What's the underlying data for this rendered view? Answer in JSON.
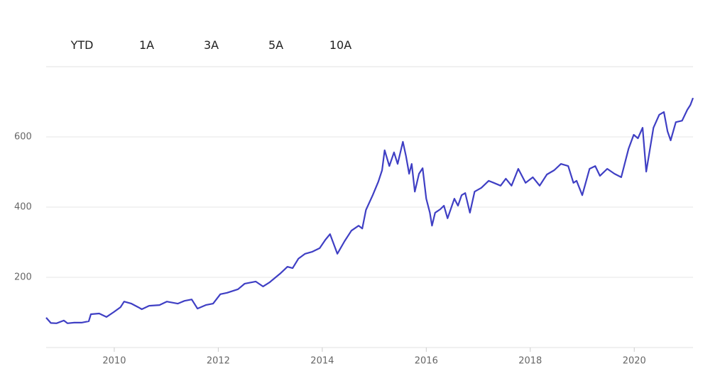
{
  "range_buttons": [
    "YTD",
    "1A",
    "3A",
    "5A",
    "10A"
  ],
  "chart_data": {
    "type": "line",
    "color": "#3f3fc4",
    "grid": true,
    "xlim": [
      2008.69,
      2021.13
    ],
    "xticks": [
      2010,
      2012,
      2014,
      2016,
      2018,
      2020
    ],
    "ylim": [
      0,
      800
    ],
    "yticks": [
      200,
      400,
      600
    ],
    "x": [
      2008.69,
      2008.78,
      2008.89,
      2009.03,
      2009.1,
      2009.23,
      2009.37,
      2009.51,
      2009.55,
      2009.71,
      2009.85,
      2009.99,
      2010.12,
      2010.19,
      2010.33,
      2010.46,
      2010.53,
      2010.67,
      2010.87,
      2011.01,
      2011.22,
      2011.35,
      2011.49,
      2011.6,
      2011.76,
      2011.9,
      2012.04,
      2012.17,
      2012.38,
      2012.51,
      2012.72,
      2012.86,
      2012.99,
      2013.2,
      2013.33,
      2013.43,
      2013.54,
      2013.67,
      2013.81,
      2013.95,
      2014.06,
      2014.15,
      2014.29,
      2014.43,
      2014.56,
      2014.7,
      2014.77,
      2014.84,
      2014.97,
      2015.08,
      2015.15,
      2015.2,
      2015.29,
      2015.38,
      2015.45,
      2015.55,
      2015.61,
      2015.67,
      2015.72,
      2015.78,
      2015.86,
      2015.93,
      2016.0,
      2016.07,
      2016.11,
      2016.17,
      2016.27,
      2016.34,
      2016.41,
      2016.54,
      2016.61,
      2016.68,
      2016.75,
      2016.84,
      2016.93,
      2017.06,
      2017.2,
      2017.3,
      2017.43,
      2017.53,
      2017.64,
      2017.77,
      2017.91,
      2018.05,
      2018.18,
      2018.32,
      2018.46,
      2018.59,
      2018.73,
      2018.83,
      2018.89,
      2019.0,
      2019.14,
      2019.25,
      2019.34,
      2019.48,
      2019.62,
      2019.75,
      2019.89,
      2019.99,
      2020.07,
      2020.16,
      2020.23,
      2020.37,
      2020.48,
      2020.57,
      2020.64,
      2020.7,
      2020.8,
      2020.92,
      2021.02,
      2021.08,
      2021.13
    ],
    "values": [
      85,
      70,
      69,
      77,
      69,
      71,
      71,
      75,
      95,
      97,
      87,
      101,
      115,
      131,
      125,
      115,
      109,
      119,
      121,
      131,
      125,
      133,
      137,
      111,
      121,
      125,
      152,
      156,
      166,
      182,
      188,
      174,
      186,
      212,
      230,
      226,
      253,
      267,
      273,
      283,
      307,
      323,
      267,
      303,
      333,
      347,
      339,
      392,
      434,
      473,
      505,
      562,
      517,
      556,
      523,
      586,
      545,
      495,
      523,
      444,
      495,
      511,
      424,
      384,
      347,
      384,
      394,
      404,
      368,
      424,
      404,
      434,
      440,
      384,
      444,
      455,
      475,
      469,
      461,
      481,
      461,
      509,
      469,
      485,
      461,
      493,
      505,
      523,
      517,
      469,
      475,
      434,
      509,
      517,
      489,
      509,
      495,
      485,
      566,
      606,
      596,
      626,
      501,
      626,
      663,
      671,
      616,
      590,
      642,
      646,
      677,
      691,
      711
    ]
  }
}
